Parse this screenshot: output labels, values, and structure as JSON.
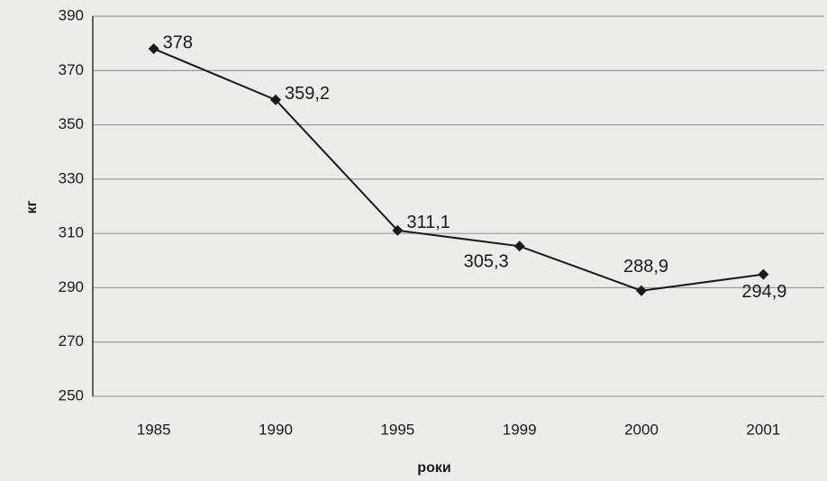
{
  "chart_data": {
    "type": "line",
    "x_label": "роки",
    "y_label": "кг",
    "categories": [
      "1985",
      "1990",
      "1995",
      "1999",
      "2000",
      "2001"
    ],
    "values": [
      378,
      359.2,
      311.1,
      305.3,
      288.9,
      294.9
    ],
    "value_labels": [
      "378",
      "359,2",
      "311,1",
      "305,3",
      "288,9",
      "294,9"
    ],
    "color": "#1a1a1a",
    "ylim": [
      250,
      390
    ],
    "yticks": [
      250,
      270,
      290,
      310,
      330,
      350,
      370,
      390
    ],
    "grid": true
  }
}
